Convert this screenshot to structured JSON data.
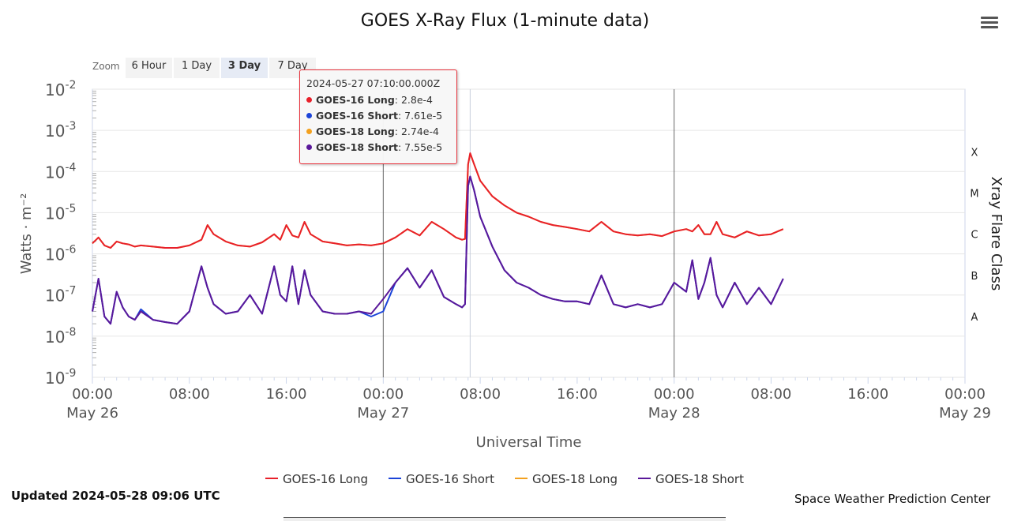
{
  "chart_data": {
    "type": "line",
    "title": "GOES X-Ray Flux (1-minute data)",
    "xlabel": "Universal Time",
    "ylabel": "Watts · m⁻²",
    "y2label": "Xray Flare Class",
    "yscale": "log",
    "ylim": [
      1e-09,
      0.01
    ],
    "xlim": [
      "2024-05-26T00:00Z",
      "2024-05-29T00:00Z"
    ],
    "grid": true,
    "legend_position": "bottom",
    "y_ticks": [
      {
        "mant": "10",
        "exp": "-9",
        "value": 1e-09
      },
      {
        "mant": "10",
        "exp": "-8",
        "value": 1e-08
      },
      {
        "mant": "10",
        "exp": "-7",
        "value": 1e-07
      },
      {
        "mant": "10",
        "exp": "-6",
        "value": 1e-06
      },
      {
        "mant": "10",
        "exp": "-5",
        "value": 1e-05
      },
      {
        "mant": "10",
        "exp": "-4",
        "value": 0.0001
      },
      {
        "mant": "10",
        "exp": "-3",
        "value": 0.001
      },
      {
        "mant": "10",
        "exp": "-2",
        "value": 0.01
      }
    ],
    "x_ticks": [
      {
        "hour": 0,
        "label": "00:00",
        "sub": "May 26"
      },
      {
        "hour": 8,
        "label": "08:00",
        "sub": ""
      },
      {
        "hour": 16,
        "label": "16:00",
        "sub": ""
      },
      {
        "hour": 24,
        "label": "00:00",
        "sub": "May 27"
      },
      {
        "hour": 32,
        "label": "08:00",
        "sub": ""
      },
      {
        "hour": 40,
        "label": "16:00",
        "sub": ""
      },
      {
        "hour": 48,
        "label": "00:00",
        "sub": "May 28"
      },
      {
        "hour": 56,
        "label": "08:00",
        "sub": ""
      },
      {
        "hour": 64,
        "label": "16:00",
        "sub": ""
      },
      {
        "hour": 72,
        "label": "00:00",
        "sub": "May 29"
      }
    ],
    "flare_classes": [
      {
        "label": "X",
        "value": 0.0003
      },
      {
        "label": "M",
        "value": 3e-05
      },
      {
        "label": "C",
        "value": 3e-06
      },
      {
        "label": "B",
        "value": 3e-07
      },
      {
        "label": "A",
        "value": 3e-08
      }
    ],
    "x_hours_since_2024-05-26T00Z_note": "",
    "x": [
      "2024-05-26 00:00",
      "2024-05-26 00:30",
      "2024-05-26 01:00",
      "2024-05-26 01:30",
      "2024-05-26 02:00",
      "2024-05-26 02:30",
      "2024-05-26 03:00",
      "2024-05-26 03:30",
      "2024-05-26 04:00",
      "2024-05-26 05:00",
      "2024-05-26 06:00",
      "2024-05-26 07:00",
      "2024-05-26 08:00",
      "2024-05-26 09:00",
      "2024-05-26 09:30",
      "2024-05-26 10:00",
      "2024-05-26 11:00",
      "2024-05-26 12:00",
      "2024-05-26 13:00",
      "2024-05-26 14:00",
      "2024-05-26 15:00",
      "2024-05-26 15:30",
      "2024-05-26 16:00",
      "2024-05-26 16:30",
      "2024-05-26 17:00",
      "2024-05-26 17:30",
      "2024-05-26 18:00",
      "2024-05-26 19:00",
      "2024-05-26 20:00",
      "2024-05-26 21:00",
      "2024-05-26 22:00",
      "2024-05-26 23:00",
      "2024-05-27 00:00",
      "2024-05-27 01:00",
      "2024-05-27 02:00",
      "2024-05-27 03:00",
      "2024-05-27 04:00",
      "2024-05-27 05:00",
      "2024-05-27 06:00",
      "2024-05-27 06:30",
      "2024-05-27 06:45",
      "2024-05-27 07:00",
      "2024-05-27 07:10",
      "2024-05-27 07:30",
      "2024-05-27 08:00",
      "2024-05-27 09:00",
      "2024-05-27 10:00",
      "2024-05-27 11:00",
      "2024-05-27 12:00",
      "2024-05-27 13:00",
      "2024-05-27 14:00",
      "2024-05-27 15:00",
      "2024-05-27 16:00",
      "2024-05-27 17:00",
      "2024-05-27 18:00",
      "2024-05-27 19:00",
      "2024-05-27 20:00",
      "2024-05-27 21:00",
      "2024-05-27 22:00",
      "2024-05-27 23:00",
      "2024-05-28 00:00",
      "2024-05-28 01:00",
      "2024-05-28 01:30",
      "2024-05-28 02:00",
      "2024-05-28 02:30",
      "2024-05-28 03:00",
      "2024-05-28 03:30",
      "2024-05-28 04:00",
      "2024-05-28 05:00",
      "2024-05-28 06:00",
      "2024-05-28 07:00",
      "2024-05-28 08:00",
      "2024-05-28 09:00"
    ],
    "x_hours": [
      0,
      0.5,
      1,
      1.5,
      2,
      2.5,
      3,
      3.5,
      4,
      5,
      6,
      7,
      8,
      9,
      9.5,
      10,
      11,
      12,
      13,
      14,
      15,
      15.5,
      16,
      16.5,
      17,
      17.5,
      18,
      19,
      20,
      21,
      22,
      23,
      24,
      25,
      26,
      27,
      28,
      29,
      30,
      30.5,
      30.75,
      31,
      31.17,
      31.5,
      32,
      33,
      34,
      35,
      36,
      37,
      38,
      39,
      40,
      41,
      42,
      43,
      44,
      45,
      46,
      47,
      48,
      49,
      49.5,
      50,
      50.5,
      51,
      51.5,
      52,
      53,
      54,
      55,
      56,
      57
    ],
    "series": [
      {
        "name": "GOES-16 Long",
        "color": "#e8202a",
        "values": [
          1.8e-06,
          2.5e-06,
          1.6e-06,
          1.4e-06,
          2e-06,
          1.8e-06,
          1.7e-06,
          1.5e-06,
          1.6e-06,
          1.5e-06,
          1.4e-06,
          1.4e-06,
          1.6e-06,
          2.2e-06,
          5e-06,
          3e-06,
          2e-06,
          1.6e-06,
          1.5e-06,
          1.9e-06,
          3e-06,
          2.2e-06,
          5e-06,
          2.8e-06,
          2.5e-06,
          6e-06,
          3e-06,
          2e-06,
          1.8e-06,
          1.6e-06,
          1.7e-06,
          1.6e-06,
          1.8e-06,
          2.5e-06,
          4e-06,
          2.8e-06,
          6e-06,
          4e-06,
          2.5e-06,
          2.2e-06,
          2.3e-06,
          0.00015,
          0.00028,
          0.00015,
          6e-05,
          2.5e-05,
          1.5e-05,
          1e-05,
          8e-06,
          6e-06,
          5e-06,
          4.5e-06,
          4e-06,
          3.5e-06,
          6e-06,
          3.5e-06,
          3e-06,
          2.8e-06,
          3e-06,
          2.7e-06,
          3.5e-06,
          4e-06,
          3.5e-06,
          5e-06,
          3e-06,
          3e-06,
          6e-06,
          3e-06,
          2.5e-06,
          3.5e-06,
          2.8e-06,
          3e-06,
          4e-06
        ]
      },
      {
        "name": "GOES-16 Short",
        "color": "#1c44d8",
        "values": [
          4e-08,
          2.5e-07,
          3e-08,
          2e-08,
          1.2e-07,
          5e-08,
          3e-08,
          2.5e-08,
          4.5e-08,
          2.5e-08,
          2.2e-08,
          2e-08,
          4e-08,
          5e-07,
          1.5e-07,
          6e-08,
          3.5e-08,
          4e-08,
          1e-07,
          3.5e-08,
          5e-07,
          1e-07,
          7e-08,
          5e-07,
          6e-08,
          4e-07,
          1e-07,
          4e-08,
          3.5e-08,
          3.5e-08,
          4e-08,
          3e-08,
          4e-08,
          2e-07,
          4.5e-07,
          1.5e-07,
          4e-07,
          9e-08,
          6e-08,
          5e-08,
          6e-08,
          4.5e-05,
          7.6e-05,
          3.5e-05,
          8e-06,
          1.5e-06,
          4e-07,
          2e-07,
          1.5e-07,
          1e-07,
          8e-08,
          7e-08,
          7e-08,
          6e-08,
          3e-07,
          6e-08,
          5e-08,
          6e-08,
          5e-08,
          6e-08,
          2e-07,
          1.2e-07,
          7e-07,
          8e-08,
          2e-07,
          8e-07,
          1e-07,
          5e-08,
          2e-07,
          6e-08,
          1.5e-07,
          6e-08,
          2.5e-07
        ]
      },
      {
        "name": "GOES-18 Long",
        "color": "#f3a11f",
        "values": [
          1.8e-06,
          2.5e-06,
          1.6e-06,
          1.4e-06,
          2e-06,
          1.8e-06,
          1.7e-06,
          1.5e-06,
          1.6e-06,
          1.5e-06,
          1.4e-06,
          1.4e-06,
          1.6e-06,
          2.2e-06,
          5e-06,
          3e-06,
          2e-06,
          1.6e-06,
          1.5e-06,
          1.9e-06,
          3e-06,
          2.2e-06,
          5e-06,
          2.8e-06,
          2.5e-06,
          6e-06,
          3e-06,
          2e-06,
          1.8e-06,
          1.6e-06,
          1.7e-06,
          1.6e-06,
          1.8e-06,
          2.5e-06,
          4e-06,
          2.8e-06,
          6e-06,
          4e-06,
          2.5e-06,
          2.2e-06,
          2.3e-06,
          0.00015,
          0.000274,
          0.00015,
          6e-05,
          2.5e-05,
          1.5e-05,
          1e-05,
          8e-06,
          6e-06,
          5e-06,
          4.5e-06,
          4e-06,
          3.5e-06,
          6e-06,
          3.5e-06,
          3e-06,
          2.8e-06,
          3e-06,
          2.7e-06,
          3.5e-06,
          4e-06,
          3.5e-06,
          5e-06,
          3e-06,
          3e-06,
          6e-06,
          3e-06,
          2.5e-06,
          3.5e-06,
          2.8e-06,
          3e-06,
          4e-06
        ]
      },
      {
        "name": "GOES-18 Short",
        "color": "#5a189a",
        "values": [
          4e-08,
          2.5e-07,
          3e-08,
          2e-08,
          1.2e-07,
          5e-08,
          3e-08,
          2.5e-08,
          4e-08,
          2.5e-08,
          2.2e-08,
          2e-08,
          4e-08,
          5e-07,
          1.5e-07,
          6e-08,
          3.5e-08,
          4e-08,
          1e-07,
          3.5e-08,
          5e-07,
          1e-07,
          7e-08,
          5e-07,
          6e-08,
          4e-07,
          1e-07,
          4e-08,
          3.5e-08,
          3.5e-08,
          4e-08,
          3.5e-08,
          8e-08,
          2e-07,
          4.5e-07,
          1.5e-07,
          4e-07,
          9e-08,
          6e-08,
          5e-08,
          6e-08,
          4.5e-05,
          7.55e-05,
          3.5e-05,
          8e-06,
          1.5e-06,
          4e-07,
          2e-07,
          1.5e-07,
          1e-07,
          8e-08,
          7e-08,
          7e-08,
          6e-08,
          3e-07,
          6e-08,
          5e-08,
          6e-08,
          5e-08,
          6e-08,
          2e-07,
          1.2e-07,
          7e-07,
          8e-08,
          2e-07,
          8e-07,
          1e-07,
          5e-08,
          2e-07,
          6e-08,
          1.5e-07,
          6e-08,
          2.5e-07
        ]
      }
    ],
    "vertical_lines_hours": [
      24,
      31.17,
      48
    ]
  },
  "zoom": {
    "label": "Zoom",
    "buttons": [
      "6 Hour",
      "1 Day",
      "3 Day",
      "7 Day"
    ],
    "active": "3 Day"
  },
  "tooltip": {
    "time": "2024-05-27 07:10:00.000Z",
    "rows": [
      {
        "name": "GOES-16 Long",
        "value": ": 2.8e-4",
        "color": "#e8202a"
      },
      {
        "name": "GOES-16 Short",
        "value": ": 7.61e-5",
        "color": "#1c44d8"
      },
      {
        "name": "GOES-18 Long",
        "value": ": 2.74e-4",
        "color": "#f3a11f"
      },
      {
        "name": "GOES-18 Short",
        "value": ": 7.55e-5",
        "color": "#5a189a"
      }
    ]
  },
  "footer": {
    "updated": "Updated 2024-05-28 09:06 UTC",
    "credits": "Space Weather Prediction Center"
  },
  "menu_icon": "hamburger-menu-icon"
}
